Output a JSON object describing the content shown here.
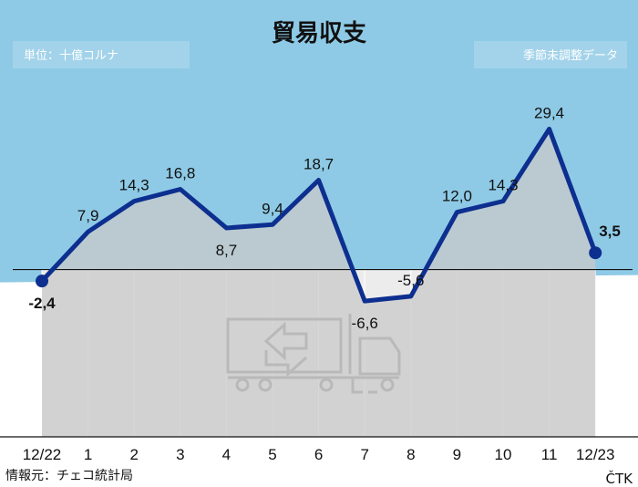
{
  "title": "貿易収支",
  "unit_note": "単位：十億コルナ",
  "adjustment_note": "季節未調整データ",
  "source": "情報元：チェコ統計局",
  "brand": "ČTK",
  "colors": {
    "sky": "#8ecae6",
    "line": "#0d2f8f",
    "area": "#c9c9c9",
    "band": "#ececec",
    "note_box": "#a3d3ea"
  },
  "icon": "truck-icon",
  "chart_data": {
    "type": "line",
    "categories": [
      "12/22",
      "1",
      "2",
      "3",
      "4",
      "5",
      "6",
      "7",
      "8",
      "9",
      "10",
      "11",
      "12/23"
    ],
    "values": [
      -2.4,
      7.9,
      14.3,
      16.8,
      8.7,
      9.4,
      18.7,
      -6.6,
      -5.6,
      12.0,
      14.3,
      29.4,
      3.5
    ],
    "value_labels": [
      "-2,4",
      "7,9",
      "14,3",
      "16,8",
      "8,7",
      "9,4",
      "18,7",
      "-6,6",
      "-5,6",
      "12,0",
      "14,3",
      "29,4",
      "3,5"
    ],
    "highlighted": [
      "12/22",
      "12/23"
    ],
    "ylim": [
      -35,
      48
    ],
    "zero_line": true,
    "grid": "vertical",
    "xlabel": "",
    "ylabel": ""
  }
}
